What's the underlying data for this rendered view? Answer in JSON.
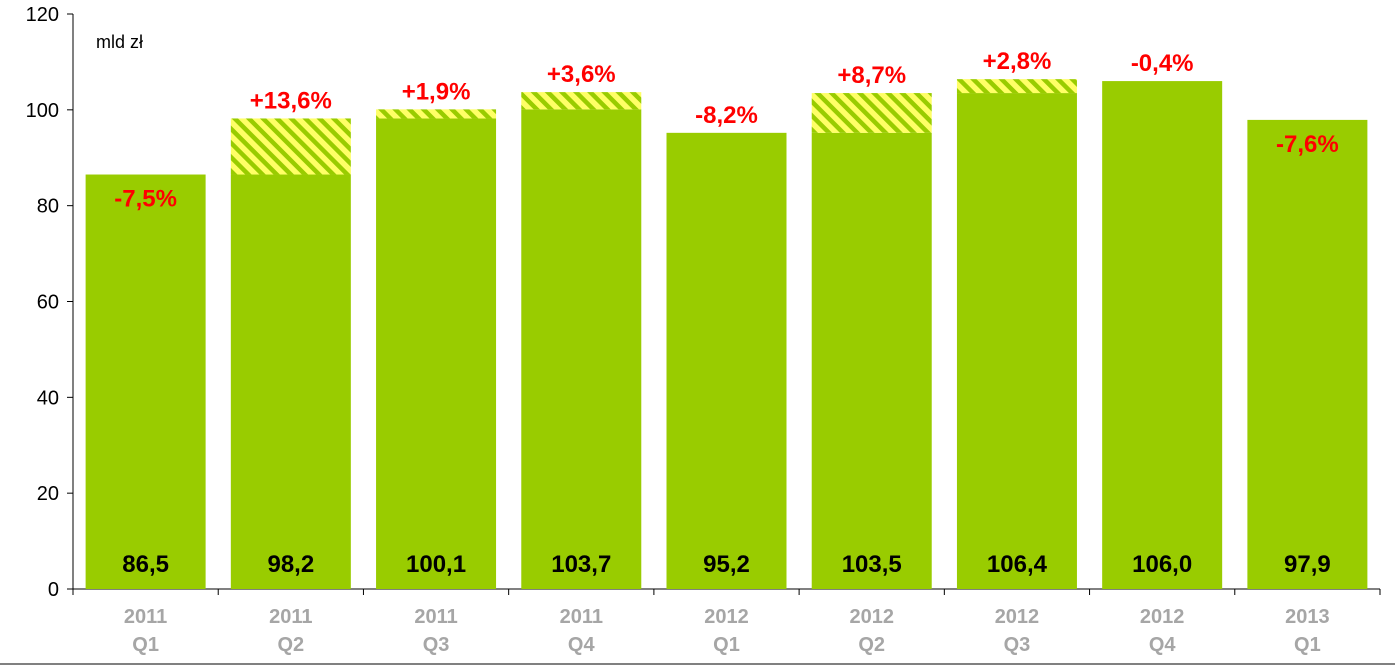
{
  "chart_data": {
    "type": "bar",
    "unit_label": "mld zł",
    "categories": [
      [
        "2011",
        "Q1"
      ],
      [
        "2011",
        "Q2"
      ],
      [
        "2011",
        "Q3"
      ],
      [
        "2011",
        "Q4"
      ],
      [
        "2012",
        "Q1"
      ],
      [
        "2012",
        "Q2"
      ],
      [
        "2012",
        "Q3"
      ],
      [
        "2012",
        "Q4"
      ],
      [
        "2013",
        "Q1"
      ]
    ],
    "values": [
      86.5,
      98.2,
      100.1,
      103.7,
      95.2,
      103.5,
      106.4,
      106.0,
      97.9
    ],
    "value_labels": [
      "86,5",
      "98,2",
      "100,1",
      "103,7",
      "95,2",
      "103,5",
      "106,4",
      "106,0",
      "97,9"
    ],
    "change_labels": [
      "-7,5%",
      "+13,6%",
      "+1,9%",
      "+3,6%",
      "-8,2%",
      "+8,7%",
      "+2,8%",
      "-0,4%",
      "-7,6%"
    ],
    "ylim": [
      0,
      120
    ],
    "yticks": [
      0,
      20,
      40,
      60,
      80,
      100,
      120
    ],
    "grid": false,
    "legend": "none",
    "colors": {
      "bar": "#99cc00",
      "hatch_fill": "#ffff66",
      "change_text": "#ff0000",
      "category_text": "#a6a6a6",
      "axis": "#000000"
    }
  }
}
